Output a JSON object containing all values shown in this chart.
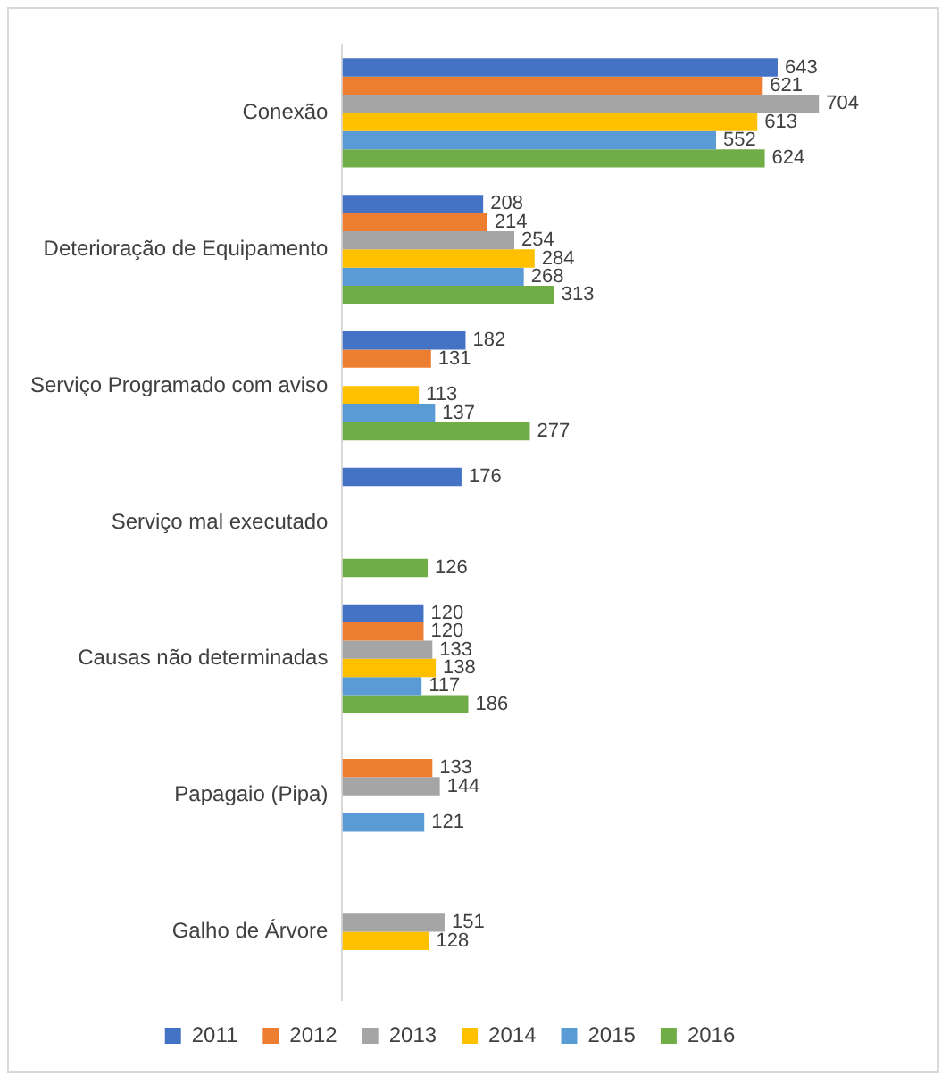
{
  "chart_data": {
    "type": "bar",
    "orientation": "horizontal",
    "categories": [
      "Conexão",
      "Deterioração de Equipamento",
      "Serviço Programado com aviso",
      "Serviço mal executado",
      "Causas não determinadas",
      "Papagaio (Pipa)",
      "Galho de Árvore"
    ],
    "series": [
      {
        "name": "2011",
        "color": "#4472c4",
        "values": [
          643,
          208,
          182,
          176,
          120,
          null,
          null
        ]
      },
      {
        "name": "2012",
        "color": "#ed7d31",
        "values": [
          621,
          214,
          131,
          null,
          120,
          133,
          null
        ]
      },
      {
        "name": "2013",
        "color": "#a5a5a5",
        "values": [
          704,
          254,
          null,
          null,
          133,
          144,
          151
        ]
      },
      {
        "name": "2014",
        "color": "#ffc000",
        "values": [
          613,
          284,
          113,
          null,
          138,
          null,
          128
        ]
      },
      {
        "name": "2015",
        "color": "#5b9bd5",
        "values": [
          552,
          268,
          137,
          null,
          117,
          121,
          null
        ]
      },
      {
        "name": "2016",
        "color": "#70ad47",
        "values": [
          624,
          313,
          277,
          126,
          186,
          null,
          null
        ]
      }
    ],
    "data_labels": true,
    "legend": "bottom",
    "grid": false,
    "tick_labels": "y"
  }
}
